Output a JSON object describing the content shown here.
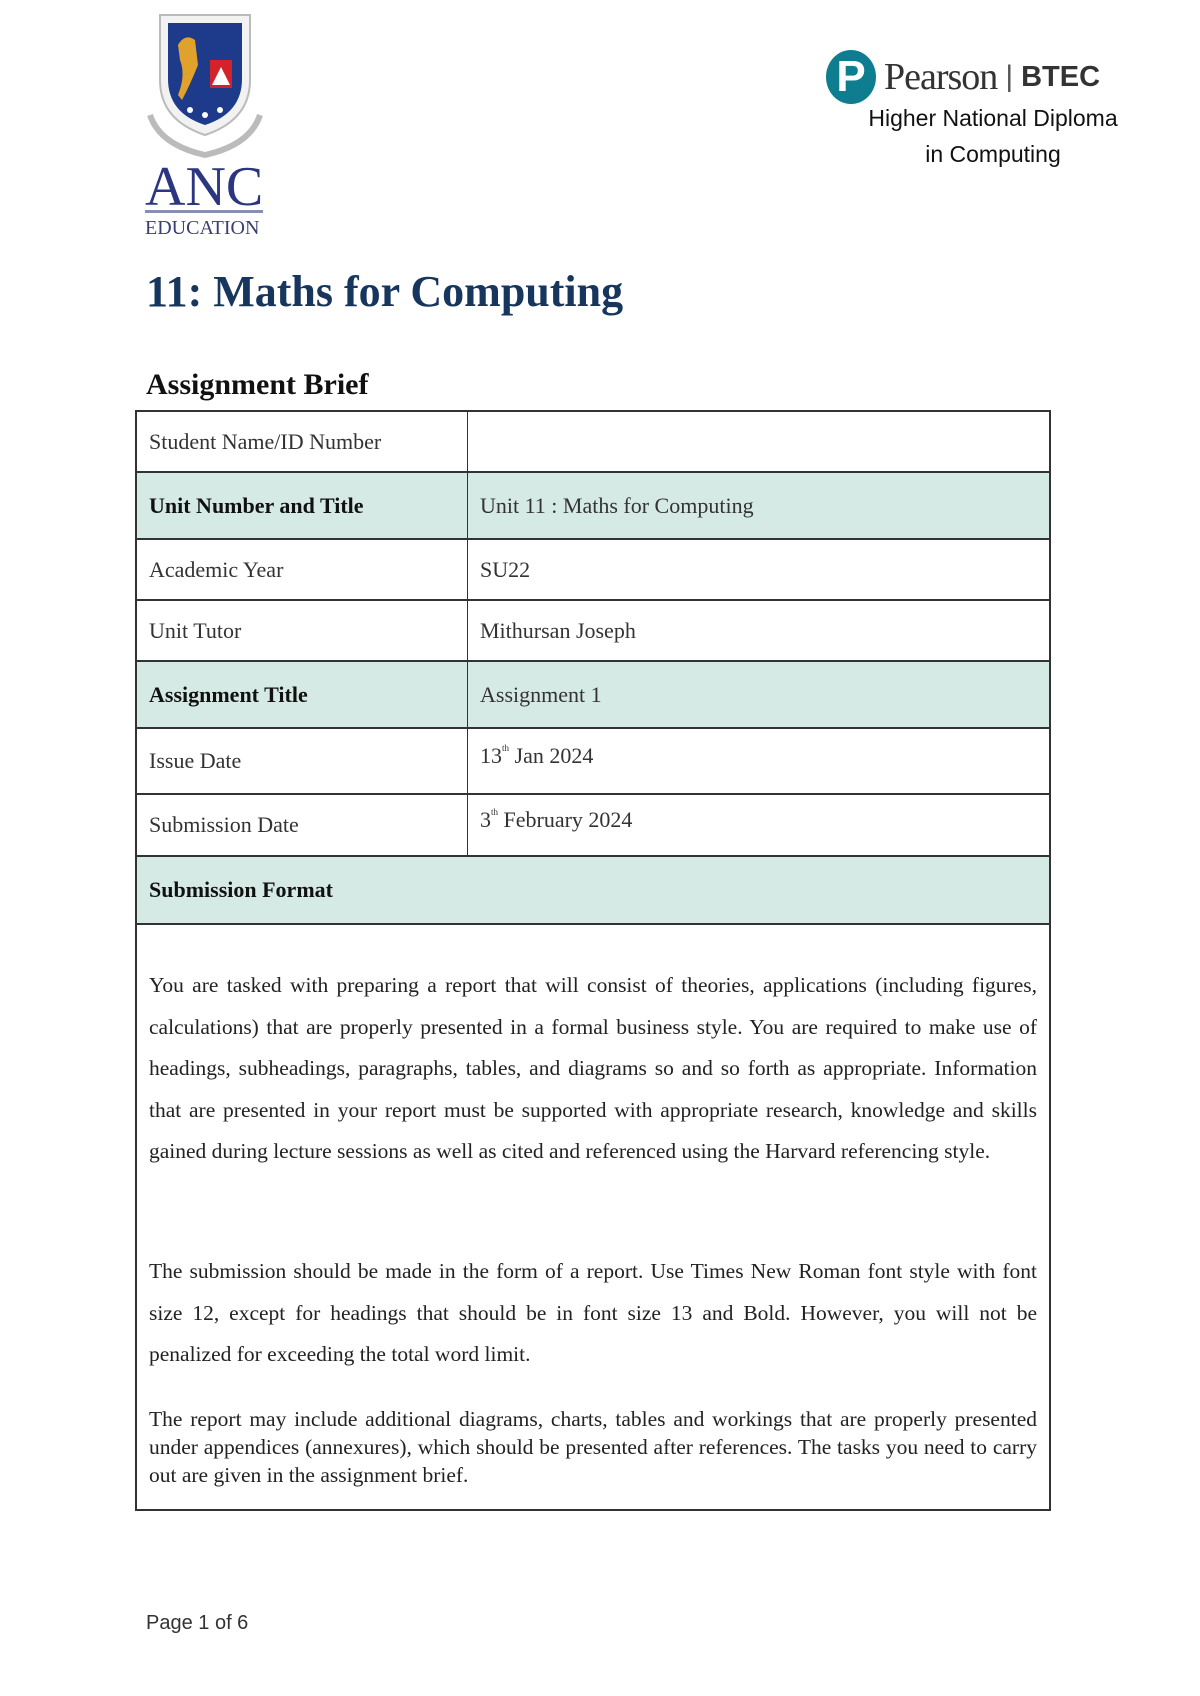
{
  "header": {
    "anc_logo": {
      "name": "ANC",
      "subtitle": "EDUCATION"
    },
    "pearson_logo": {
      "brand": "Pearson",
      "sub_brand": "BTEC",
      "icon": "pearson-p-icon",
      "color": "#0d7d8f"
    },
    "qualification_line1": "Higher National Diploma",
    "qualification_line2": "in Computing"
  },
  "title": "11: Maths for Computing",
  "section_heading": "Assignment Brief",
  "colors": {
    "title": "#17365d",
    "shaded_row": "#d5eae4"
  },
  "table": {
    "rows": [
      {
        "label": "Student Name/ID Number",
        "value": "",
        "shaded": false
      },
      {
        "label": "Unit Number and Title",
        "value": "Unit 11 : Maths for Computing",
        "shaded": true
      },
      {
        "label": "Academic Year",
        "value": "SU22",
        "shaded": false
      },
      {
        "label": "Unit Tutor",
        "value": "Mithursan Joseph",
        "shaded": false
      },
      {
        "label": "Assignment Title",
        "value": "Assignment 1",
        "shaded": true
      },
      {
        "label": "Issue Date",
        "value_day": "13",
        "value_sup": "th",
        "value_rest": " Jan 2024",
        "shaded": false
      },
      {
        "label": "Submission Date",
        "value_day": "3",
        "value_sup": "th",
        "value_rest": " February 2024",
        "shaded": false
      }
    ],
    "submission_format": {
      "heading": "Submission Format",
      "paragraphs": [
        "You are tasked with preparing a report that will consist of theories, applications (including figures, calculations) that are properly presented in a formal business style. You are required to make use of headings, subheadings, paragraphs, tables, and diagrams so and so forth as appropriate. Information that are presented in your report must be supported with appropriate research, knowledge and skills gained during lecture sessions as well as cited and referenced using the Harvard referencing style.",
        "The submission should be made in the form of a report. Use Times New Roman font style with font size 12, except for headings that should be in font size 13 and Bold. However, you will not be penalized for exceeding the total word limit.",
        "The report may include additional diagrams, charts, tables and workings that are properly presented under appendices (annexures), which should be presented after references. The tasks you need to carry out are given in the assignment brief."
      ]
    }
  },
  "footer": {
    "page_label": "Page 1 of 6"
  }
}
